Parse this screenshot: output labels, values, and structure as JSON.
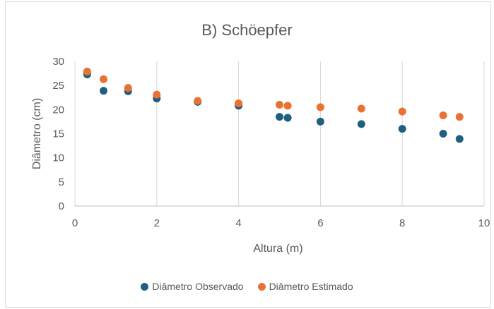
{
  "chart_data": {
    "type": "scatter",
    "title": "B) Schöepfer",
    "xlabel": "Altura (m)",
    "ylabel": "Diâmetro (cm)",
    "xlim": [
      0,
      10
    ],
    "ylim": [
      0,
      30
    ],
    "x_ticks": [
      "0",
      "2",
      "4",
      "6",
      "8",
      "10"
    ],
    "y_ticks": [
      "0",
      "5",
      "10",
      "15",
      "20",
      "25",
      "30"
    ],
    "grid": "vertical",
    "legend_position": "bottom",
    "series": [
      {
        "name": "Diâmetro Observado",
        "color": "#1f5f82",
        "x": [
          0.3,
          0.7,
          1.3,
          2.0,
          3.0,
          4.0,
          5.0,
          5.2,
          6.0,
          7.0,
          8.0,
          9.0,
          9.4
        ],
        "y": [
          27.3,
          23.9,
          23.8,
          22.3,
          21.6,
          20.8,
          18.5,
          18.3,
          17.5,
          17.0,
          16.0,
          15.0,
          13.9
        ]
      },
      {
        "name": "Diâmetro Estimado",
        "color": "#e97132",
        "x": [
          0.3,
          0.7,
          1.3,
          2.0,
          3.0,
          4.0,
          5.0,
          5.2,
          6.0,
          7.0,
          8.0,
          9.0,
          9.4
        ],
        "y": [
          27.9,
          26.3,
          24.5,
          23.1,
          21.8,
          21.3,
          21.0,
          20.8,
          20.5,
          20.2,
          19.6,
          18.8,
          18.5
        ]
      }
    ]
  }
}
